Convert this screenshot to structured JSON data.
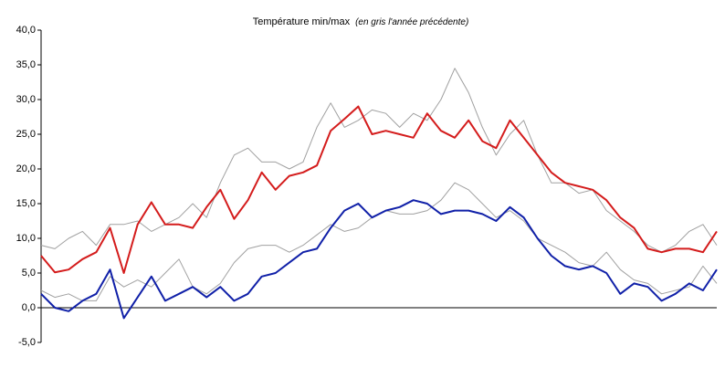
{
  "chart_data": {
    "type": "line",
    "title": "Température min/max",
    "subtitle": "(en gris l'année précédente)",
    "ylim": [
      -5,
      40
    ],
    "yticks": [
      {
        "value": -5,
        "label": "-5,0"
      },
      {
        "value": 0,
        "label": "0,0"
      },
      {
        "value": 5,
        "label": "5,0"
      },
      {
        "value": 10,
        "label": "10,0"
      },
      {
        "value": 15,
        "label": "15,0"
      },
      {
        "value": 20,
        "label": "20,0"
      },
      {
        "value": 25,
        "label": "25,0"
      },
      {
        "value": 30,
        "label": "30,0"
      },
      {
        "value": 35,
        "label": "35,0"
      },
      {
        "value": 40,
        "label": "40,0"
      }
    ],
    "grid": false,
    "series": [
      {
        "color": "#a0a0a0",
        "values": [
          9,
          8.5,
          10,
          11,
          9,
          12,
          12,
          12.5,
          11,
          12,
          13,
          15,
          13,
          18,
          22,
          23,
          21,
          21,
          20,
          21,
          26,
          29.5,
          26,
          27,
          28.5,
          28,
          26,
          28,
          27,
          30,
          34.5,
          31,
          26,
          22,
          25,
          27,
          22,
          18,
          18,
          16.5,
          17,
          14,
          12.5,
          11,
          9,
          8,
          9,
          11,
          12,
          9
        ]
      },
      {
        "color": "#a0a0a0",
        "values": [
          2.5,
          1.5,
          2,
          1,
          1,
          4.5,
          3,
          4,
          3,
          5,
          7,
          3,
          2,
          3.5,
          6.5,
          8.5,
          9,
          9,
          8,
          9,
          10.5,
          12,
          11,
          11.5,
          13,
          14,
          13.5,
          13.5,
          14,
          15.5,
          18,
          17,
          15,
          13,
          14,
          12.5,
          10,
          9,
          8,
          6.5,
          6,
          8,
          5.5,
          4,
          3.5,
          2,
          2.5,
          3,
          6,
          3.5
        ]
      },
      {
        "color": "#d41c1c",
        "values": [
          7.5,
          5.1,
          5.5,
          7,
          8,
          11.5,
          5,
          12,
          15.2,
          12,
          12,
          11.5,
          14.5,
          17,
          12.8,
          15.5,
          19.5,
          17,
          19,
          19.5,
          20.5,
          25.5,
          27.2,
          29,
          25,
          25.5,
          25,
          24.5,
          28,
          25.5,
          24.5,
          27,
          24,
          23,
          27,
          24.5,
          22,
          19.5,
          18,
          17.5,
          17,
          15.5,
          13,
          11.5,
          8.5,
          8,
          8.5,
          8.5,
          8,
          11
        ]
      },
      {
        "color": "#1020a8",
        "values": [
          2,
          0,
          -0.5,
          1,
          2,
          5.5,
          -1.5,
          1.5,
          4.5,
          1,
          2,
          3,
          1.5,
          3,
          1,
          2,
          4.5,
          5,
          6.5,
          8,
          8.5,
          11.5,
          14,
          15,
          13,
          14,
          14.5,
          15.5,
          15,
          13.5,
          14,
          14,
          13.5,
          12.5,
          14.5,
          13,
          10,
          7.5,
          6,
          5.5,
          6,
          5,
          2,
          3.5,
          3,
          1,
          2,
          3.5,
          2.5,
          5.5
        ]
      }
    ]
  }
}
